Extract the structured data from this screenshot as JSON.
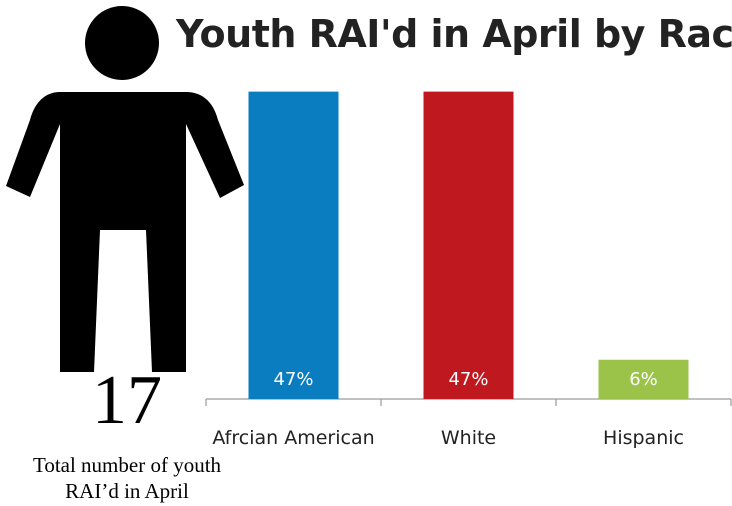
{
  "chart_data": {
    "type": "bar",
    "title": "Youth RAI'd in April by Race",
    "categories": [
      "Afrcian American",
      "White",
      "Hispanic"
    ],
    "values": [
      47,
      47,
      6
    ],
    "value_labels": [
      "47%",
      "47%",
      "6%"
    ],
    "colors": [
      "#0A7DC0",
      "#C0181F",
      "#9BC34A"
    ],
    "ylim": [
      0,
      50
    ],
    "grid": false,
    "legend": "none"
  },
  "total": {
    "value": "17",
    "caption_line1": "Total number of youth",
    "caption_line2": "RAI’d in April",
    "icon": "person-icon"
  }
}
